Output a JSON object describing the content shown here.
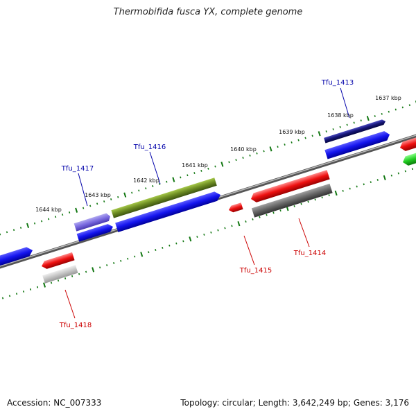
{
  "title": "Thermobifida fusca YX, complete genome",
  "footer": {
    "accession": "Accession: NC_007333",
    "summary": "Topology: circular; Length: 3,642,249 bp; Genes: 3,176"
  },
  "scale_labels": [
    "1637 kbp",
    "1638 kbp",
    "1639 kbp",
    "1640 kbp",
    "1641 kbp",
    "1642 kbp",
    "1643 kbp",
    "1644 kbp"
  ],
  "gene_labels": {
    "forward": [
      "Tfu_1413",
      "Tfu_1416",
      "Tfu_1417"
    ],
    "reverse": [
      "Tfu_1414",
      "Tfu_1415",
      "Tfu_1418"
    ]
  },
  "colors": {
    "forward_label": "#0000aa",
    "reverse_label": "#cc0000",
    "tick": "#117711",
    "backbone": "#7a7a7a"
  }
}
